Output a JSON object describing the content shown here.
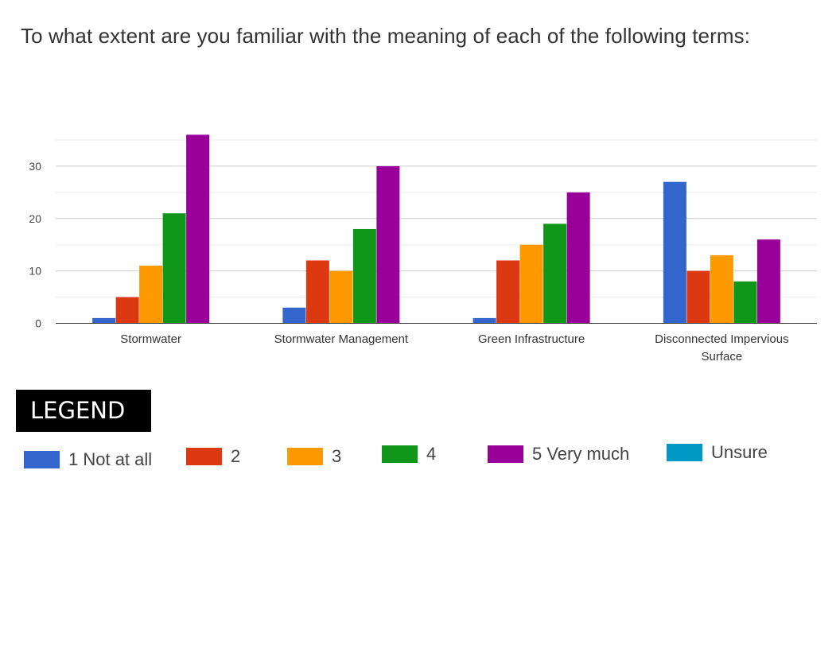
{
  "title": "To what extent are you familiar with the meaning of each of the following terms:",
  "legend_title": "LEGEND",
  "colors": {
    "1 Not at all": "#3366cc",
    "2": "#dc3912",
    "3": "#ff9900",
    "4": "#109618",
    "5 Very much": "#990099",
    "Unsure": "#0099c6"
  },
  "chart_data": {
    "type": "bar",
    "title": "",
    "categories": [
      "Stormwater",
      "Stormwater Management",
      "Green Infrastructure",
      "Disconnected Impervious Surface"
    ],
    "series": [
      {
        "name": "1 Not at all",
        "values": [
          1,
          3,
          1,
          27
        ]
      },
      {
        "name": "2",
        "values": [
          5,
          12,
          12,
          10
        ]
      },
      {
        "name": "3",
        "values": [
          11,
          10,
          15,
          13
        ]
      },
      {
        "name": "4",
        "values": [
          21,
          18,
          19,
          8
        ]
      },
      {
        "name": "5 Very much",
        "values": [
          36,
          30,
          25,
          16
        ]
      },
      {
        "name": "Unsure",
        "values": [
          0,
          0,
          0,
          0
        ]
      }
    ],
    "yticks": [
      0,
      10,
      20,
      30
    ],
    "ylim": [
      0,
      35
    ],
    "xlabel": "",
    "ylabel": "",
    "grid": true,
    "legend_position": "bottom"
  }
}
